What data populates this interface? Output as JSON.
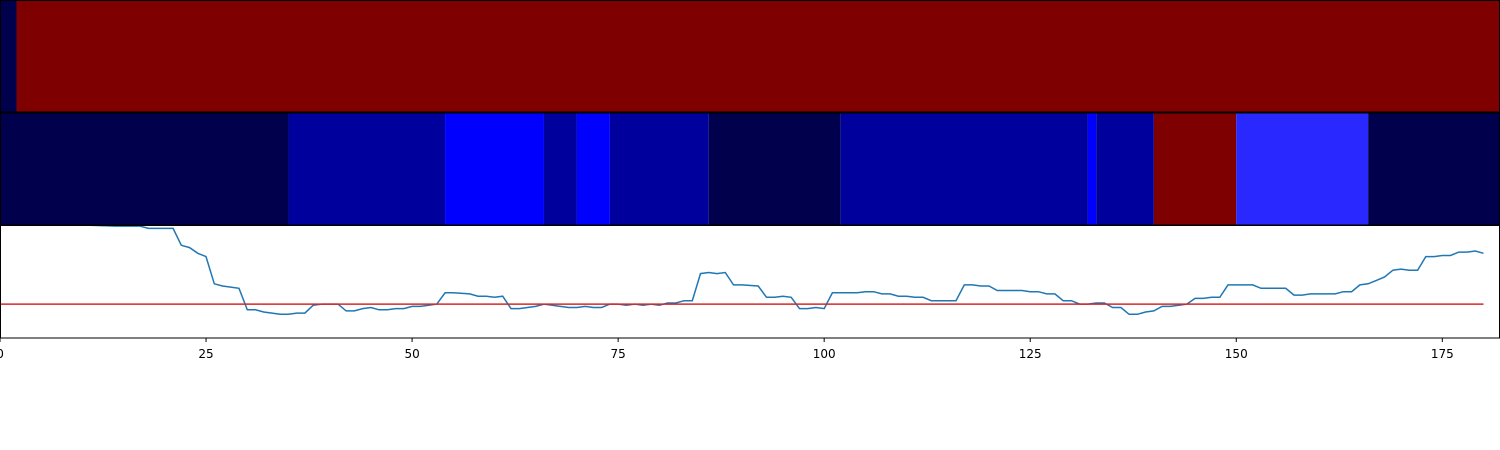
{
  "chart_data": [
    {
      "type": "heatmap",
      "segments": [
        {
          "start": 0,
          "end": 2,
          "color": "#00004c"
        },
        {
          "start": 2,
          "end": 182,
          "color": "#7f0000"
        }
      ]
    },
    {
      "type": "heatmap",
      "segments": [
        {
          "start": 0,
          "end": 35,
          "color": "#00004c"
        },
        {
          "start": 35,
          "end": 54,
          "color": "#00009d"
        },
        {
          "start": 54,
          "end": 66,
          "color": "#0000ff"
        },
        {
          "start": 66,
          "end": 70,
          "color": "#00009d"
        },
        {
          "start": 70,
          "end": 74,
          "color": "#0000ff"
        },
        {
          "start": 74,
          "end": 86,
          "color": "#00009d"
        },
        {
          "start": 86,
          "end": 102,
          "color": "#00004c"
        },
        {
          "start": 102,
          "end": 132,
          "color": "#00009d"
        },
        {
          "start": 132,
          "end": 133,
          "color": "#0000ff"
        },
        {
          "start": 133,
          "end": 140,
          "color": "#00009d"
        },
        {
          "start": 140,
          "end": 150,
          "color": "#7f0000"
        },
        {
          "start": 150,
          "end": 166,
          "color": "#2828ff"
        },
        {
          "start": 166,
          "end": 182,
          "color": "#00004c"
        }
      ]
    },
    {
      "type": "line",
      "xlim": [
        0,
        182
      ],
      "ylim": [
        0,
        1
      ],
      "x_ticks": [
        0,
        25,
        50,
        75,
        100,
        125,
        150,
        175
      ],
      "series": [
        {
          "color": "#1f77b4",
          "points": [
            [
              0,
              1.05
            ],
            [
              5,
              1.02
            ],
            [
              10,
              1.0
            ],
            [
              14,
              0.99
            ],
            [
              17,
              0.99
            ],
            [
              18,
              0.97
            ],
            [
              21,
              0.97
            ],
            [
              22,
              0.82
            ],
            [
              23,
              0.8
            ],
            [
              24,
              0.75
            ],
            [
              25,
              0.72
            ],
            [
              26,
              0.48
            ],
            [
              27,
              0.46
            ],
            [
              29,
              0.44
            ],
            [
              30,
              0.25
            ],
            [
              31,
              0.25
            ],
            [
              32,
              0.23
            ],
            [
              33,
              0.22
            ],
            [
              34,
              0.21
            ],
            [
              35,
              0.21
            ],
            [
              36,
              0.22
            ],
            [
              37,
              0.22
            ],
            [
              38,
              0.29
            ],
            [
              39,
              0.3
            ],
            [
              41,
              0.3
            ],
            [
              42,
              0.24
            ],
            [
              43,
              0.24
            ],
            [
              44,
              0.26
            ],
            [
              45,
              0.27
            ],
            [
              46,
              0.25
            ],
            [
              47,
              0.25
            ],
            [
              48,
              0.26
            ],
            [
              49,
              0.26
            ],
            [
              50,
              0.28
            ],
            [
              51,
              0.28
            ],
            [
              52,
              0.29
            ],
            [
              53,
              0.3
            ],
            [
              54,
              0.4
            ],
            [
              55,
              0.4
            ],
            [
              57,
              0.39
            ],
            [
              58,
              0.37
            ],
            [
              59,
              0.37
            ],
            [
              60,
              0.36
            ],
            [
              61,
              0.37
            ],
            [
              62,
              0.26
            ],
            [
              63,
              0.26
            ],
            [
              64,
              0.27
            ],
            [
              65,
              0.28
            ],
            [
              66,
              0.3
            ],
            [
              67,
              0.29
            ],
            [
              68,
              0.28
            ],
            [
              69,
              0.27
            ],
            [
              70,
              0.27
            ],
            [
              71,
              0.28
            ],
            [
              72,
              0.27
            ],
            [
              73,
              0.27
            ],
            [
              74,
              0.3
            ],
            [
              75,
              0.3
            ],
            [
              76,
              0.29
            ],
            [
              77,
              0.3
            ],
            [
              78,
              0.29
            ],
            [
              79,
              0.3
            ],
            [
              80,
              0.29
            ],
            [
              81,
              0.31
            ],
            [
              82,
              0.31
            ],
            [
              83,
              0.33
            ],
            [
              84,
              0.33
            ],
            [
              85,
              0.57
            ],
            [
              86,
              0.58
            ],
            [
              87,
              0.57
            ],
            [
              88,
              0.58
            ],
            [
              89,
              0.47
            ],
            [
              90,
              0.47
            ],
            [
              92,
              0.46
            ],
            [
              93,
              0.36
            ],
            [
              94,
              0.36
            ],
            [
              95,
              0.37
            ],
            [
              96,
              0.36
            ],
            [
              97,
              0.26
            ],
            [
              98,
              0.26
            ],
            [
              99,
              0.27
            ],
            [
              100,
              0.26
            ],
            [
              101,
              0.4
            ],
            [
              102,
              0.4
            ],
            [
              103,
              0.4
            ],
            [
              104,
              0.4
            ],
            [
              105,
              0.41
            ],
            [
              106,
              0.41
            ],
            [
              107,
              0.39
            ],
            [
              108,
              0.39
            ],
            [
              109,
              0.37
            ],
            [
              110,
              0.37
            ],
            [
              111,
              0.36
            ],
            [
              112,
              0.36
            ],
            [
              113,
              0.33
            ],
            [
              114,
              0.33
            ],
            [
              116,
              0.33
            ],
            [
              117,
              0.47
            ],
            [
              118,
              0.47
            ],
            [
              119,
              0.46
            ],
            [
              120,
              0.46
            ],
            [
              121,
              0.42
            ],
            [
              122,
              0.42
            ],
            [
              124,
              0.42
            ],
            [
              125,
              0.41
            ],
            [
              126,
              0.41
            ],
            [
              127,
              0.39
            ],
            [
              128,
              0.39
            ],
            [
              129,
              0.33
            ],
            [
              130,
              0.33
            ],
            [
              131,
              0.3
            ],
            [
              132,
              0.3
            ],
            [
              133,
              0.31
            ],
            [
              134,
              0.31
            ],
            [
              135,
              0.27
            ],
            [
              136,
              0.27
            ],
            [
              137,
              0.21
            ],
            [
              138,
              0.21
            ],
            [
              139,
              0.23
            ],
            [
              140,
              0.24
            ],
            [
              141,
              0.28
            ],
            [
              142,
              0.28
            ],
            [
              143,
              0.29
            ],
            [
              144,
              0.3
            ],
            [
              145,
              0.35
            ],
            [
              146,
              0.35
            ],
            [
              147,
              0.36
            ],
            [
              148,
              0.36
            ],
            [
              149,
              0.47
            ],
            [
              150,
              0.47
            ],
            [
              151,
              0.47
            ],
            [
              152,
              0.47
            ],
            [
              153,
              0.44
            ],
            [
              154,
              0.44
            ],
            [
              156,
              0.44
            ],
            [
              157,
              0.38
            ],
            [
              158,
              0.38
            ],
            [
              159,
              0.39
            ],
            [
              160,
              0.39
            ],
            [
              161,
              0.39
            ],
            [
              162,
              0.39
            ],
            [
              163,
              0.41
            ],
            [
              164,
              0.41
            ],
            [
              165,
              0.47
            ],
            [
              166,
              0.48
            ],
            [
              167,
              0.51
            ],
            [
              168,
              0.54
            ],
            [
              169,
              0.6
            ],
            [
              170,
              0.61
            ],
            [
              171,
              0.6
            ],
            [
              172,
              0.6
            ],
            [
              173,
              0.72
            ],
            [
              174,
              0.72
            ],
            [
              175,
              0.73
            ],
            [
              176,
              0.73
            ],
            [
              177,
              0.76
            ],
            [
              178,
              0.76
            ],
            [
              179,
              0.77
            ],
            [
              180,
              0.75
            ]
          ]
        },
        {
          "color": "#d62728",
          "points": [
            [
              0,
              0.3
            ],
            [
              180,
              0.3
            ]
          ]
        }
      ]
    }
  ]
}
